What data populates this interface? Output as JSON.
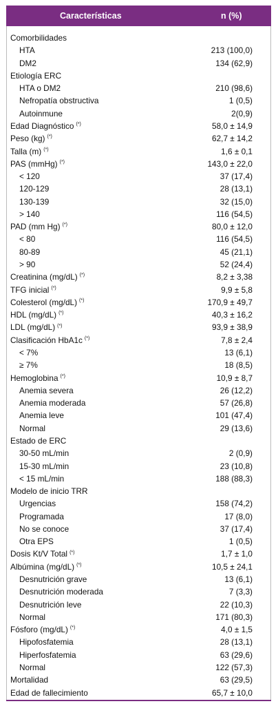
{
  "table": {
    "header": [
      "Características",
      "n (%)"
    ],
    "note_mark": "(*)",
    "rows": [
      {
        "label": "Comorbilidades",
        "sub": [
          {
            "label": "HTA",
            "value": "213 (100,0)"
          },
          {
            "label": "DM2",
            "value": "134 (62,9)"
          }
        ]
      },
      {
        "label": "Etiología ERC",
        "sub": [
          {
            "label": "HTA o DM2",
            "value": "210 (98,6)"
          },
          {
            "label": "Nefropatía obstructiva",
            "value": "1 (0,5)"
          },
          {
            "label": "Autoinmune",
            "value": "2(0,9)"
          }
        ]
      },
      {
        "label": "Edad Diagnóstico",
        "noted": true,
        "value": "58,0 ± 14,9"
      },
      {
        "label": "Peso (kg)",
        "noted": true,
        "value": "62,7 ± 14,2"
      },
      {
        "label": "Talla (m)",
        "noted": true,
        "value": "1,6 ± 0,1"
      },
      {
        "label": "PAS (mmHg)",
        "noted": true,
        "value": "143,0 ± 22,0",
        "sub": [
          {
            "label": "< 120",
            "value": "37 (17,4)"
          },
          {
            "label": "120-129",
            "value": "28 (13,1)"
          },
          {
            "label": "130-139",
            "value": "32 (15,0)"
          },
          {
            "label": "> 140",
            "value": "116 (54,5)"
          }
        ]
      },
      {
        "label": "PAD (mm Hg)",
        "noted": true,
        "value": "80,0 ± 12,0",
        "sub": [
          {
            "label": "< 80",
            "value": "116 (54,5)"
          },
          {
            "label": "80-89",
            "value": "45 (21,1)"
          },
          {
            "label": "> 90",
            "value": "52 (24,4)"
          }
        ]
      },
      {
        "label": "Creatinina (mg/dL)",
        "noted": true,
        "value": "8,2 ± 3,38"
      },
      {
        "label": "TFG inicial",
        "noted": true,
        "value": "9,9 ± 5,8"
      },
      {
        "label": "Colesterol (mg/dL)",
        "noted": true,
        "value": "170,9 ± 49,7"
      },
      {
        "label": "HDL (mg/dL)",
        "noted": true,
        "value": "40,3 ± 16,2"
      },
      {
        "label": "LDL (mg/dL)",
        "noted": true,
        "value": "93,9 ± 38,9"
      },
      {
        "label": "Clasificación HbA1c",
        "noted": true,
        "value": "7,8 ± 2,4",
        "sub": [
          {
            "label": "< 7%",
            "value": "13 (6,1)"
          },
          {
            "label": "≥ 7%",
            "value": "18 (8,5)"
          }
        ]
      },
      {
        "label": "Hemoglobina",
        "noted": true,
        "value": "10,9 ± 8,7",
        "sub": [
          {
            "label": "Anemia severa",
            "value": "26 (12,2)"
          },
          {
            "label": "Anemia moderada",
            "value": "57 (26,8)"
          },
          {
            "label": "Anemia leve",
            "value": "101 (47,4)"
          },
          {
            "label": "Normal",
            "value": "29 (13,6)"
          }
        ]
      },
      {
        "label": "Estado de ERC",
        "sub": [
          {
            "label": "30-50 mL/min",
            "value": "2 (0,9)"
          },
          {
            "label": "15-30 mL/min",
            "value": "23 (10,8)"
          },
          {
            "label": "< 15 mL/min",
            "value": "188 (88,3)"
          }
        ]
      },
      {
        "label": "Modelo de inicio TRR",
        "sub": [
          {
            "label": "Urgencias",
            "value": "158 (74,2)"
          },
          {
            "label": "Programada",
            "value": "17 (8,0)"
          },
          {
            "label": "No se conoce",
            "value": "37 (17,4)"
          },
          {
            "label": "Otra EPS",
            "value": "1 (0,5)"
          }
        ]
      },
      {
        "label": "Dosis Kt/V Total",
        "noted": true,
        "value": "1,7 ± 1,0"
      },
      {
        "label": "Albúmina (mg/dL)",
        "noted": true,
        "value": "10,5 ± 24,1",
        "sub": [
          {
            "label": "Desnutrición grave",
            "value": "13 (6,1)"
          },
          {
            "label": "Desnutrición moderada",
            "value": "7 (3,3)"
          },
          {
            "label": "Desnutrición leve",
            "value": "22 (10,3)"
          },
          {
            "label": "Normal",
            "value": "171 (80,3)"
          }
        ]
      },
      {
        "label": "Fósforo (mg/dL)",
        "noted": true,
        "value": "4,0 ± 1,5",
        "sub": [
          {
            "label": "Hipofosfatemia",
            "value": "28 (13,1)"
          },
          {
            "label": "Hiperfosfatemia",
            "value": "63 (29,6)"
          },
          {
            "label": "Normal",
            "value": "122 (57,3)"
          }
        ]
      },
      {
        "label": "Mortalidad",
        "value": "63 (29,5)"
      },
      {
        "label": "Edad de fallecimiento",
        "value": "65,7 ± 10,0"
      }
    ]
  }
}
